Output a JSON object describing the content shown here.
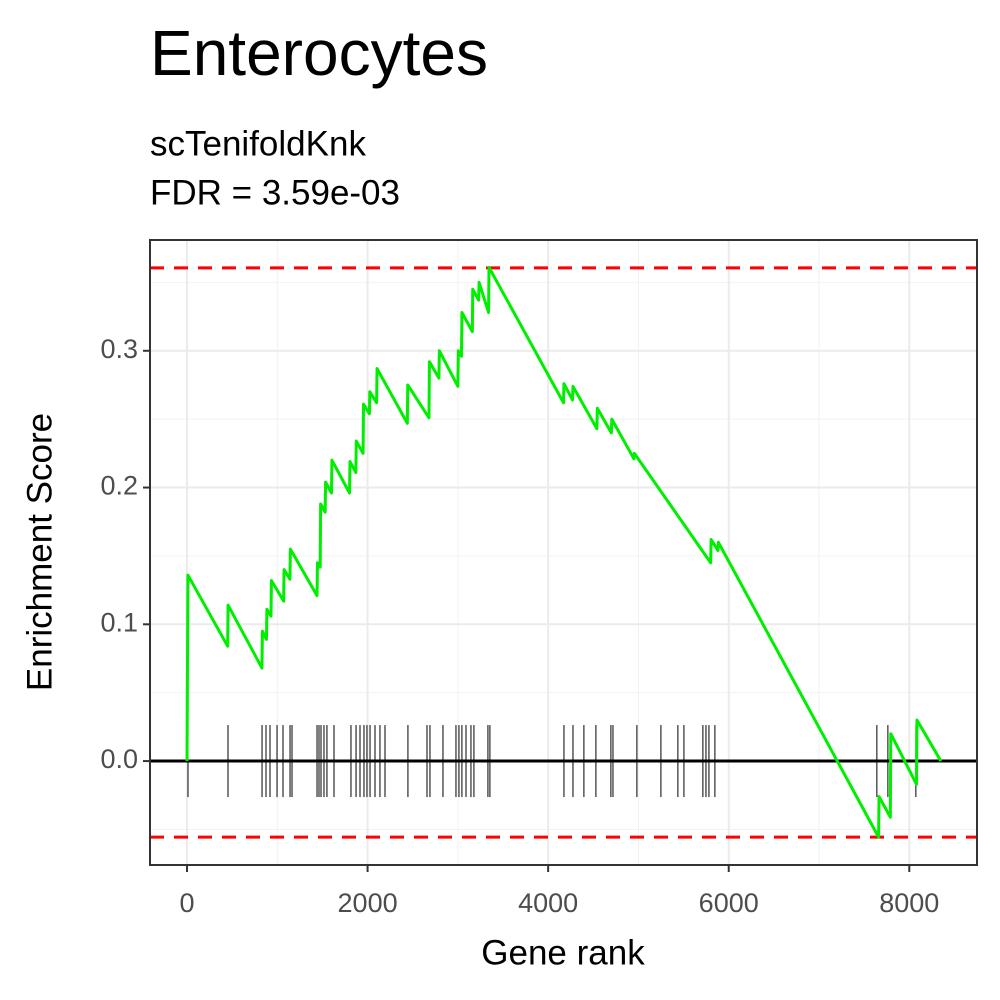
{
  "chart_data": {
    "type": "line",
    "title": "Enterocytes",
    "subtitle": [
      "scTenifoldKnk",
      "FDR = 3.59e-03"
    ],
    "x_label": "Gene rank",
    "y_label": "Enrichment Score",
    "xlim": [
      -410,
      8750
    ],
    "ylim": [
      -0.076,
      0.381
    ],
    "xticks": [
      0,
      2000,
      4000,
      6000,
      8000
    ],
    "yticks": [
      {
        "value": 0,
        "label": "0.0"
      },
      0.1,
      0.2,
      0.3
    ],
    "grid": true,
    "series": [
      {
        "color": "#00ee00",
        "x": [
          0,
          10,
          450,
          455,
          830,
          835,
          880,
          885,
          930,
          935,
          1070,
          1075,
          1140,
          1145,
          1440,
          1445,
          1475,
          1480,
          1530,
          1535,
          1600,
          1605,
          1800,
          1805,
          1870,
          1875,
          1950,
          1955,
          2020,
          2025,
          2100,
          2105,
          2440,
          2445,
          2680,
          2685,
          2790,
          2795,
          3000,
          3005,
          3040,
          3045,
          3160,
          3165,
          3230,
          3235,
          3340,
          3345,
          4170,
          4175,
          4270,
          4275,
          4540,
          4545,
          4700,
          4705,
          4950,
          4955,
          5800,
          5805,
          5880,
          5885,
          7660,
          7665,
          7790,
          7795,
          8080,
          8085,
          8350
        ],
        "values": [
          0,
          0.136,
          0.084,
          0.114,
          0.068,
          0.095,
          0.089,
          0.111,
          0.106,
          0.132,
          0.117,
          0.14,
          0.133,
          0.155,
          0.121,
          0.145,
          0.142,
          0.188,
          0.182,
          0.204,
          0.196,
          0.22,
          0.196,
          0.219,
          0.211,
          0.234,
          0.225,
          0.261,
          0.254,
          0.27,
          0.262,
          0.287,
          0.247,
          0.275,
          0.251,
          0.292,
          0.28,
          0.3,
          0.274,
          0.3,
          0.296,
          0.328,
          0.314,
          0.345,
          0.337,
          0.35,
          0.328,
          0.361,
          0.262,
          0.276,
          0.264,
          0.274,
          0.243,
          0.258,
          0.24,
          0.25,
          0.221,
          0.225,
          0.145,
          0.162,
          0.154,
          0.16,
          -0.0556,
          -0.026,
          -0.041,
          0.02,
          -0.017,
          0.03,
          0
        ]
      }
    ],
    "hits": [
      11,
      454,
      831,
      875,
      919,
      997,
      1063,
      1141,
      1163,
      1440,
      1462,
      1484,
      1517,
      1550,
      1628,
      1816,
      1872,
      1916,
      1960,
      1993,
      2027,
      2082,
      2137,
      2193,
      2447,
      2658,
      2691,
      2835,
      2979,
      3012,
      3045,
      3090,
      3145,
      3178,
      3333,
      3355,
      4175,
      4275,
      4396,
      4529,
      4695,
      4718,
      4983,
      5249,
      5437,
      5504,
      5714,
      5748,
      5781,
      5847,
      7641,
      7763,
      8073
    ],
    "reference_lines": {
      "values": [
        0.3606,
        -0.0556
      ],
      "color": "#ff0000"
    }
  }
}
